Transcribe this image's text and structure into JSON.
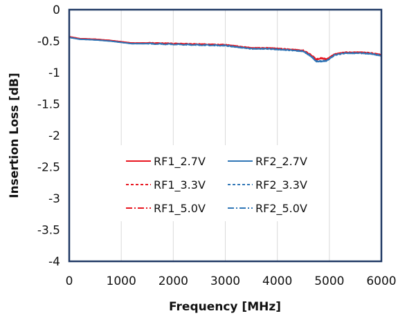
{
  "chart_data": {
    "type": "line",
    "xlabel": "Frequency [MHz]",
    "ylabel": "Insertion Loss [dB]",
    "xlim": [
      0,
      6000
    ],
    "ylim": [
      -4,
      0
    ],
    "x_ticks": [
      0,
      1000,
      2000,
      3000,
      4000,
      5000,
      6000
    ],
    "y_ticks": [
      0,
      -0.5,
      -1,
      -1.5,
      -2,
      -2.5,
      -3,
      -3.5,
      -4
    ],
    "x_tick_labels": [
      "0",
      "1000",
      "2000",
      "3000",
      "4000",
      "5000",
      "6000"
    ],
    "y_tick_labels": [
      "0",
      "-0.5",
      "-1",
      "-1.5",
      "-2",
      "-2.5",
      "-3",
      "-3.5",
      "-4"
    ],
    "grid": "vertical",
    "legend_position": "center",
    "x": [
      0,
      200,
      500,
      800,
      1000,
      1200,
      1500,
      2000,
      2500,
      3000,
      3200,
      3500,
      3800,
      4000,
      4200,
      4500,
      4650,
      4750,
      4850,
      4950,
      5100,
      5300,
      5600,
      5800,
      6000
    ],
    "series": [
      {
        "name": "RF1_2.7V",
        "color": "#e8141e",
        "dash": "solid",
        "values": [
          -0.43,
          -0.46,
          -0.47,
          -0.49,
          -0.51,
          -0.53,
          -0.53,
          -0.54,
          -0.55,
          -0.56,
          -0.58,
          -0.61,
          -0.61,
          -0.62,
          -0.63,
          -0.65,
          -0.72,
          -0.79,
          -0.77,
          -0.79,
          -0.71,
          -0.68,
          -0.68,
          -0.69,
          -0.72
        ]
      },
      {
        "name": "RF2_2.7V",
        "color": "#2e75b6",
        "dash": "solid",
        "values": [
          -0.44,
          -0.47,
          -0.48,
          -0.5,
          -0.52,
          -0.54,
          -0.54,
          -0.55,
          -0.56,
          -0.57,
          -0.59,
          -0.62,
          -0.62,
          -0.63,
          -0.64,
          -0.66,
          -0.74,
          -0.82,
          -0.82,
          -0.81,
          -0.72,
          -0.69,
          -0.69,
          -0.7,
          -0.73
        ]
      },
      {
        "name": "RF1_3.3V",
        "color": "#e8141e",
        "dash": "dashed",
        "values": [
          -0.43,
          -0.46,
          -0.47,
          -0.49,
          -0.51,
          -0.53,
          -0.53,
          -0.54,
          -0.55,
          -0.56,
          -0.58,
          -0.61,
          -0.61,
          -0.62,
          -0.63,
          -0.65,
          -0.72,
          -0.79,
          -0.77,
          -0.79,
          -0.71,
          -0.68,
          -0.68,
          -0.69,
          -0.72
        ]
      },
      {
        "name": "RF2_3.3V",
        "color": "#2e75b6",
        "dash": "dashed",
        "values": [
          -0.44,
          -0.47,
          -0.48,
          -0.5,
          -0.52,
          -0.54,
          -0.54,
          -0.55,
          -0.56,
          -0.57,
          -0.59,
          -0.62,
          -0.62,
          -0.63,
          -0.64,
          -0.66,
          -0.74,
          -0.82,
          -0.82,
          -0.81,
          -0.72,
          -0.69,
          -0.69,
          -0.7,
          -0.73
        ]
      },
      {
        "name": "RF1_5.0V",
        "color": "#e8141e",
        "dash": "dashdot",
        "values": [
          -0.43,
          -0.46,
          -0.47,
          -0.49,
          -0.51,
          -0.53,
          -0.53,
          -0.54,
          -0.55,
          -0.56,
          -0.58,
          -0.61,
          -0.61,
          -0.62,
          -0.63,
          -0.65,
          -0.72,
          -0.79,
          -0.77,
          -0.79,
          -0.71,
          -0.68,
          -0.68,
          -0.69,
          -0.72
        ]
      },
      {
        "name": "RF2_5.0V",
        "color": "#2e75b6",
        "dash": "dashdot",
        "values": [
          -0.44,
          -0.47,
          -0.48,
          -0.5,
          -0.52,
          -0.54,
          -0.54,
          -0.55,
          -0.56,
          -0.57,
          -0.59,
          -0.62,
          -0.62,
          -0.63,
          -0.64,
          -0.66,
          -0.74,
          -0.82,
          -0.82,
          -0.81,
          -0.72,
          -0.69,
          -0.69,
          -0.7,
          -0.73
        ]
      }
    ]
  }
}
